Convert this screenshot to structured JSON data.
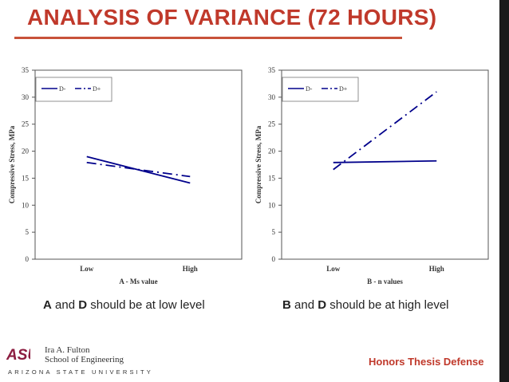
{
  "slide": {
    "title": "ANALYSIS OF VARIANCE (72 HOURS)",
    "conclusion_a": {
      "b1": "A",
      "t1": " and ",
      "b2": "D",
      "t2": " should be at low level"
    },
    "conclusion_b": {
      "b1": "B",
      "t1": " and ",
      "b2": "D",
      "t2": " should be at high level"
    },
    "footer_right": "Honors Thesis Defense",
    "logo": {
      "asu": "ASU",
      "line1": "Ira A. Fulton",
      "line2": "School of Engineering",
      "university": "ARIZONA STATE UNIVERSITY"
    }
  },
  "colors": {
    "accent": "#c0392b",
    "series": "#00008b"
  },
  "chart_data": [
    {
      "type": "line",
      "categories": [
        "Low",
        "High"
      ],
      "xlabel": "A - Ms value",
      "ylabel": "Compressive Stress, MPa",
      "ylim": [
        0,
        35
      ],
      "yticks": [
        0,
        5,
        10,
        15,
        20,
        25,
        30,
        35
      ],
      "grid": false,
      "legend_position": "top-left",
      "series": [
        {
          "name": "D-",
          "values": [
            19.0,
            14.1
          ],
          "style": "solid"
        },
        {
          "name": "D+",
          "values": [
            17.9,
            15.3
          ],
          "style": "dashdot"
        }
      ]
    },
    {
      "type": "line",
      "categories": [
        "Low",
        "High"
      ],
      "xlabel": "B - n values",
      "ylabel": "Compressive Stress, MPa",
      "ylim": [
        0,
        35
      ],
      "yticks": [
        0,
        5,
        10,
        15,
        20,
        25,
        30,
        35
      ],
      "grid": false,
      "legend_position": "top-left",
      "series": [
        {
          "name": "D-",
          "values": [
            17.9,
            18.2
          ],
          "style": "solid"
        },
        {
          "name": "D+",
          "values": [
            16.6,
            31.0
          ],
          "style": "dashdot"
        }
      ]
    }
  ]
}
